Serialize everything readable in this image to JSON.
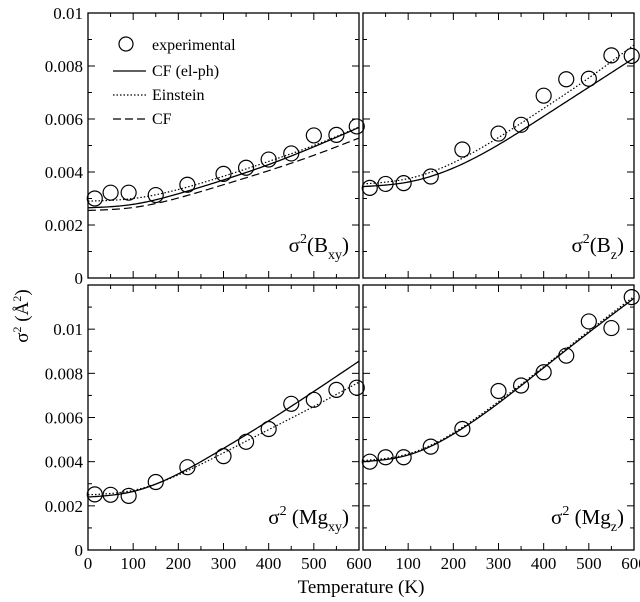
{
  "chart_data": {
    "type": "scatter",
    "xlabel": "Temperature (K)",
    "ylabel": "σ² (Å²)",
    "ylabel_parts": {
      "sigma": "σ",
      "sup": "2",
      "open": " (",
      "unit": "Å",
      "unit_sup": "2",
      "close": ")"
    },
    "legend": {
      "placement": "top-left of top-left panel",
      "entries": [
        {
          "label": "experimental",
          "style": "circle"
        },
        {
          "label": "CF (el-ph)",
          "style": "solid"
        },
        {
          "label": "Einstein",
          "style": "dotted"
        },
        {
          "label": "CF",
          "style": "dashed"
        }
      ]
    },
    "panels": [
      {
        "id": "bxy",
        "position": "top-left",
        "label": {
          "sigma": "σ",
          "sup": "2",
          "open": "(",
          "species": "B",
          "sub": "xy",
          "close": ")"
        },
        "xlim": [
          0,
          600
        ],
        "ylim": [
          0,
          0.01
        ],
        "yticks": [
          "0",
          "0.002",
          "0.004",
          "0.006",
          "0.008",
          "0.01"
        ],
        "experimental": {
          "x": [
            15,
            50,
            90,
            150,
            220,
            300,
            350,
            400,
            450,
            500,
            550,
            595
          ],
          "y": [
            0.003,
            0.00322,
            0.00322,
            0.00313,
            0.00352,
            0.00393,
            0.00416,
            0.00447,
            0.0047,
            0.00538,
            0.0054,
            0.00572
          ]
        },
        "curves": [
          {
            "name": "CF (el-ph)",
            "style": "solid",
            "x": [
              0,
              100,
              200,
              300,
              400,
              500,
              600
            ],
            "y": [
              0.00265,
              0.00278,
              0.00318,
              0.0037,
              0.00428,
              0.00495,
              0.00568
            ]
          },
          {
            "name": "Einstein",
            "style": "dotted",
            "x": [
              0,
              100,
              200,
              300,
              400,
              500,
              600
            ],
            "y": [
              0.0029,
              0.003,
              0.00334,
              0.00384,
              0.0044,
              0.005,
              0.0057
            ]
          },
          {
            "name": "CF",
            "style": "dashed",
            "x": [
              0,
              100,
              200,
              300,
              400,
              500,
              600
            ],
            "y": [
              0.00255,
              0.00266,
              0.00302,
              0.00352,
              0.00405,
              0.00463,
              0.00528
            ]
          }
        ]
      },
      {
        "id": "bz",
        "position": "top-right",
        "label": {
          "sigma": "σ",
          "sup": "2",
          "open": "(",
          "species": "B",
          "sub": "z",
          "close": ")"
        },
        "xlim": [
          0,
          600
        ],
        "ylim": [
          0,
          0.01
        ],
        "experimental": {
          "x": [
            15,
            50,
            90,
            150,
            220,
            300,
            350,
            400,
            450,
            500,
            550,
            595
          ],
          "y": [
            0.0034,
            0.00355,
            0.00358,
            0.00383,
            0.00485,
            0.00545,
            0.00578,
            0.00688,
            0.0075,
            0.00752,
            0.0084,
            0.00838
          ]
        },
        "curves": [
          {
            "name": "CF (el-ph)",
            "style": "solid",
            "x": [
              0,
              100,
              200,
              300,
              400,
              500,
              600
            ],
            "y": [
              0.00345,
              0.00362,
              0.00415,
              0.00503,
              0.0061,
              0.0072,
              0.0083
            ]
          },
          {
            "name": "Einstein",
            "style": "dotted",
            "x": [
              0,
              100,
              200,
              300,
              400,
              500,
              600
            ],
            "y": [
              0.00355,
              0.00375,
              0.00435,
              0.0053,
              0.0064,
              0.00755,
              0.0088
            ]
          }
        ]
      },
      {
        "id": "mgxy",
        "position": "bottom-left",
        "label": {
          "sigma": "σ",
          "sup": "2",
          "open": " (",
          "species": "Mg",
          "sub": "xy",
          "close": ")"
        },
        "xlim": [
          0,
          600
        ],
        "ylim": [
          0,
          0.012
        ],
        "yticks": [
          "0",
          "0.002",
          "0.004",
          "0.006",
          "0.008",
          "0.01"
        ],
        "experimental": {
          "x": [
            15,
            50,
            90,
            150,
            220,
            300,
            350,
            400,
            450,
            500,
            550,
            595
          ],
          "y": [
            0.00252,
            0.0025,
            0.00245,
            0.00308,
            0.00375,
            0.00425,
            0.0049,
            0.00548,
            0.00662,
            0.0068,
            0.00725,
            0.00735
          ]
        },
        "curves": [
          {
            "name": "CF (el-ph)",
            "style": "solid",
            "x": [
              0,
              100,
              200,
              300,
              400,
              500,
              600
            ],
            "y": [
              0.0024,
              0.00265,
              0.00345,
              0.0046,
              0.00585,
              0.00718,
              0.00855
            ]
          },
          {
            "name": "Einstein",
            "style": "dotted",
            "x": [
              0,
              100,
              200,
              300,
              400,
              500,
              600
            ],
            "y": [
              0.0025,
              0.0027,
              0.0034,
              0.0044,
              0.00545,
              0.0065,
              0.0076
            ]
          }
        ]
      },
      {
        "id": "mgz",
        "position": "bottom-right",
        "label": {
          "sigma": "σ",
          "sup": "2",
          "open": " (",
          "species": "Mg",
          "sub": "z",
          "close": ")"
        },
        "xlim": [
          0,
          600
        ],
        "ylim": [
          0,
          0.012
        ],
        "experimental": {
          "x": [
            15,
            50,
            90,
            150,
            220,
            300,
            350,
            400,
            450,
            500,
            550,
            595
          ],
          "y": [
            0.004,
            0.0042,
            0.0042,
            0.00468,
            0.00548,
            0.0072,
            0.00745,
            0.00805,
            0.0088,
            0.01035,
            0.01005,
            0.01145
          ]
        },
        "curves": [
          {
            "name": "CF (el-ph)",
            "style": "solid",
            "x": [
              0,
              100,
              200,
              300,
              400,
              500,
              600
            ],
            "y": [
              0.004,
              0.0043,
              0.00525,
              0.00665,
              0.00825,
              0.00985,
              0.0114
            ]
          },
          {
            "name": "Einstein",
            "style": "dotted",
            "x": [
              0,
              100,
              200,
              300,
              400,
              500,
              600
            ],
            "y": [
              0.00405,
              0.00435,
              0.0053,
              0.00672,
              0.0083,
              0.00992,
              0.01148
            ]
          }
        ]
      }
    ],
    "xticks": [
      "0",
      "100",
      "200",
      "300",
      "400",
      "500",
      "600"
    ]
  }
}
